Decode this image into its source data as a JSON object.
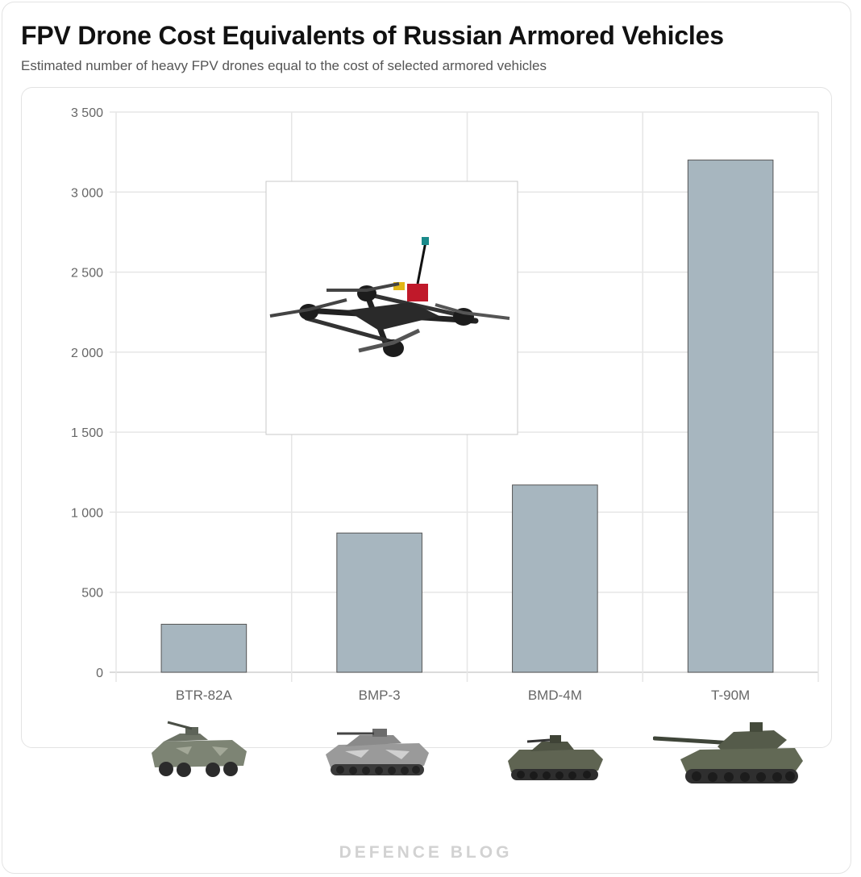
{
  "header": {
    "title": "FPV Drone Cost Equivalents of Russian Armored Vehicles",
    "subtitle": "Estimated number of heavy FPV drones equal to the cost of selected armored vehicles"
  },
  "chart_data": {
    "type": "bar",
    "categories": [
      "BTR-82A",
      "BMP-3",
      "BMD-4M",
      "T-90M"
    ],
    "values": [
      300,
      870,
      1170,
      3200
    ],
    "title": "FPV Drone Cost Equivalents of Russian Armored Vehicles",
    "subtitle": "Estimated number of heavy FPV drones equal to the cost of selected armored vehicles",
    "ylim": [
      0,
      3500
    ],
    "yticks": [
      0,
      500,
      1000,
      1500,
      2000,
      2500,
      3000,
      3500
    ],
    "ytick_labels": [
      "0",
      "500",
      "1 000",
      "1 500",
      "2 000",
      "2 500",
      "3 000",
      "3 500"
    ],
    "grid": true,
    "legend": false,
    "bar_color": "#a7b6bf",
    "bar_edge_color": "#555555"
  },
  "illustrations": {
    "drone_icon": "fpv-drone-photo",
    "vehicle_icons": [
      "btr-82a-photo",
      "bmp-3-photo",
      "bmd-4m-photo",
      "t-90m-photo"
    ]
  },
  "footer": {
    "brand": "DEFENCE BLOG"
  }
}
